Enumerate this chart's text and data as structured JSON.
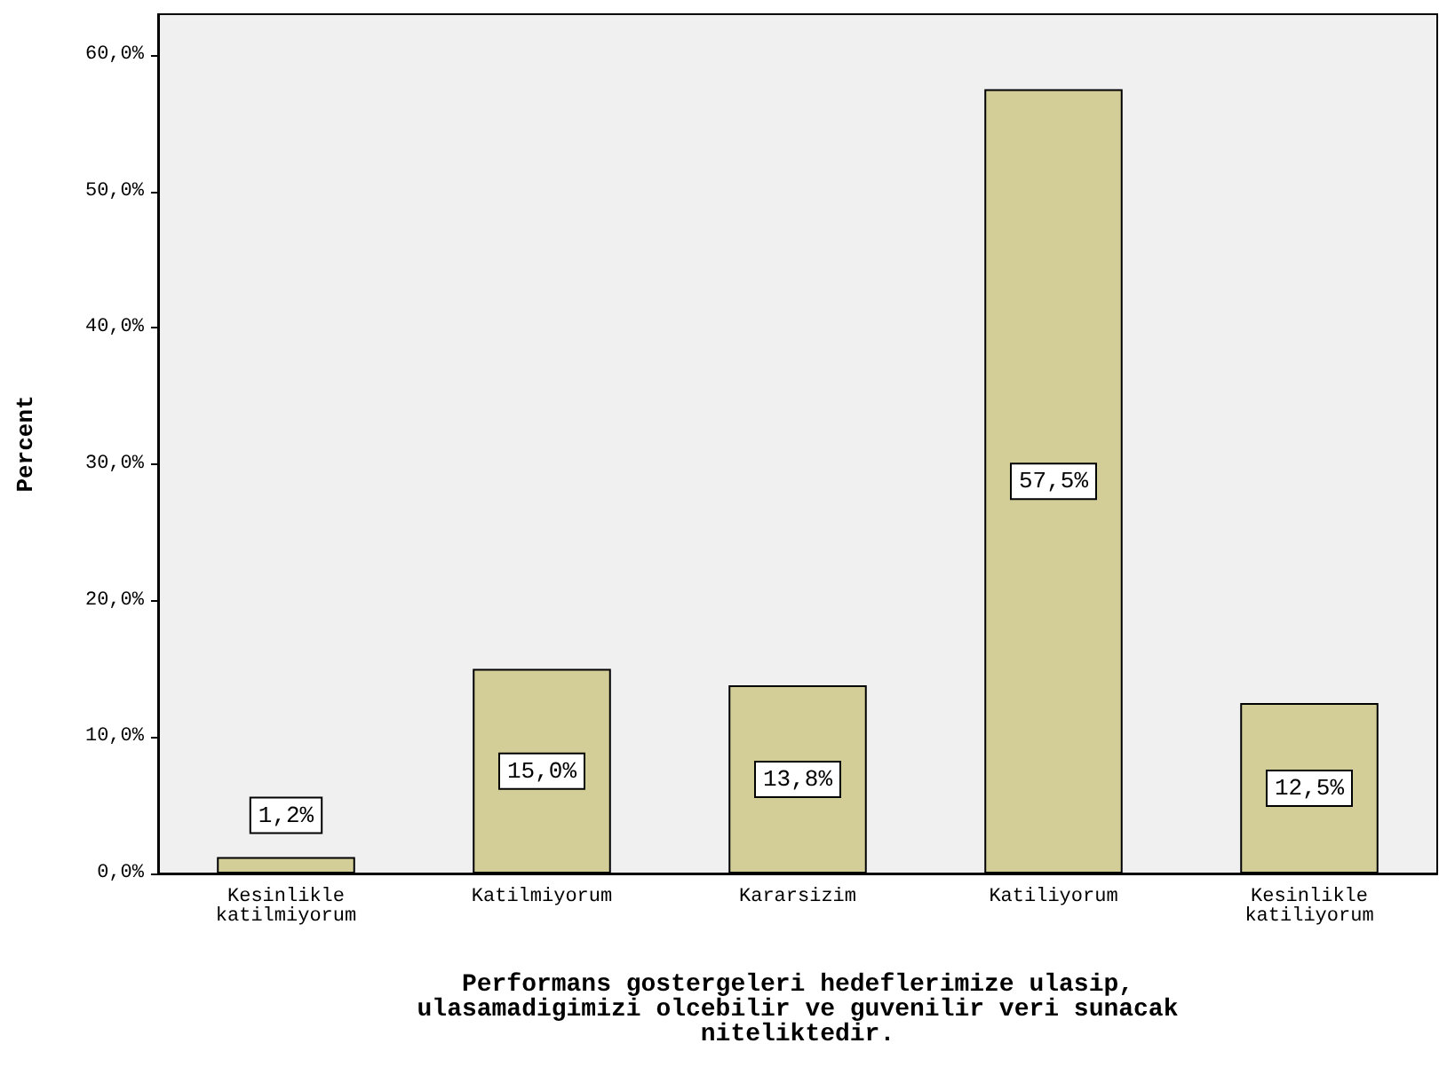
{
  "chart_data": {
    "type": "bar",
    "xlabel": "Performans gostergeleri hedeflerimize ulasip,\nulasamadigimizi olcebilir ve guvenilir veri sunacak\nniteliktedir.",
    "ylabel": "Percent",
    "categories": [
      "Kesinlikle\nkatilmiyorum",
      "Katilmiyorum",
      "Kararsizim",
      "Katiliyorum",
      "Kesinlikle\nkatiliyorum"
    ],
    "values": [
      1.2,
      15.0,
      13.8,
      57.5,
      12.5
    ],
    "value_labels": [
      "1,2%",
      "15,0%",
      "13,8%",
      "57,5%",
      "12,5%"
    ],
    "color": "#d3cd97",
    "ylim": [
      0,
      63
    ],
    "yticks": [
      {
        "value": 0,
        "label": "0,0%"
      },
      {
        "value": 10,
        "label": "10,0%"
      },
      {
        "value": 20,
        "label": "20,0%"
      },
      {
        "value": 30,
        "label": "30,0%"
      },
      {
        "value": 40,
        "label": "40,0%"
      },
      {
        "value": 50,
        "label": "50,0%"
      },
      {
        "value": 60,
        "label": "60,0%"
      }
    ],
    "grid": false
  }
}
